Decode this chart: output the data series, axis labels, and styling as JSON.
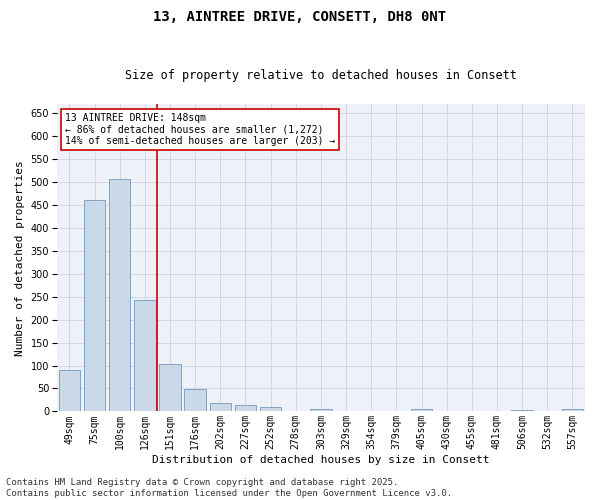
{
  "title": "13, AINTREE DRIVE, CONSETT, DH8 0NT",
  "subtitle": "Size of property relative to detached houses in Consett",
  "xlabel": "Distribution of detached houses by size in Consett",
  "ylabel": "Number of detached properties",
  "categories": [
    "49sqm",
    "75sqm",
    "100sqm",
    "126sqm",
    "151sqm",
    "176sqm",
    "202sqm",
    "227sqm",
    "252sqm",
    "278sqm",
    "303sqm",
    "329sqm",
    "354sqm",
    "379sqm",
    "405sqm",
    "430sqm",
    "455sqm",
    "481sqm",
    "506sqm",
    "532sqm",
    "557sqm"
  ],
  "values": [
    90,
    460,
    507,
    242,
    104,
    48,
    18,
    15,
    9,
    0,
    5,
    0,
    0,
    0,
    5,
    0,
    0,
    0,
    3,
    0,
    5
  ],
  "bar_color": "#c9d9e8",
  "bar_edge_color": "#7399bb",
  "vline_x": 3.5,
  "vline_color": "#cc0000",
  "annotation_line1": "13 AINTREE DRIVE: 148sqm",
  "annotation_line2": "← 86% of detached houses are smaller (1,272)",
  "annotation_line3": "14% of semi-detached houses are larger (203) →",
  "annotation_box_color": "#ffffff",
  "annotation_box_edge": "#cc0000",
  "ylim": [
    0,
    670
  ],
  "yticks": [
    0,
    50,
    100,
    150,
    200,
    250,
    300,
    350,
    400,
    450,
    500,
    550,
    600,
    650
  ],
  "grid_color": "#d0d8e8",
  "background_color": "#eef2f8",
  "footer_line1": "Contains HM Land Registry data © Crown copyright and database right 2025.",
  "footer_line2": "Contains public sector information licensed under the Open Government Licence v3.0.",
  "title_fontsize": 10,
  "subtitle_fontsize": 8.5,
  "axis_label_fontsize": 8,
  "tick_fontsize": 7,
  "annotation_fontsize": 7,
  "footer_fontsize": 6.5
}
